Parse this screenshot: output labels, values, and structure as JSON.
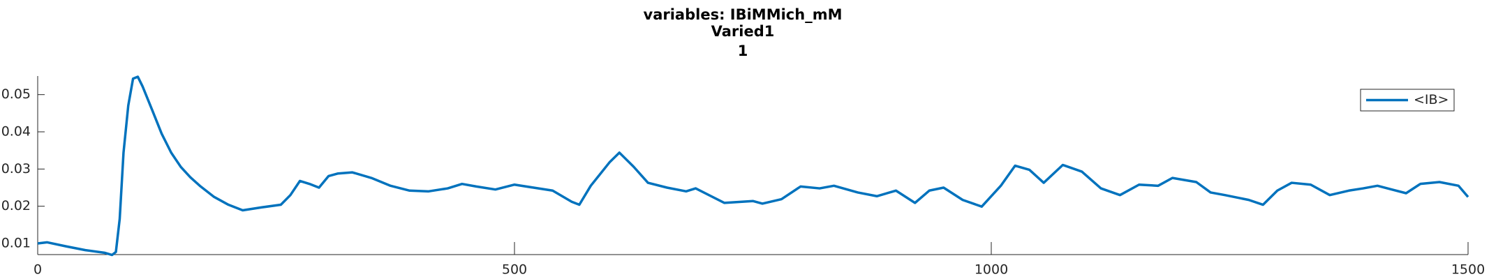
{
  "chart_data": {
    "type": "line",
    "title": "variables: IBiMMich_mM",
    "subtitle": [
      "Varied1",
      "1"
    ],
    "x": [
      0,
      10,
      30,
      50,
      70,
      78,
      82,
      86,
      90,
      95,
      100,
      105,
      110,
      120,
      130,
      140,
      150,
      160,
      170,
      185,
      200,
      215,
      235,
      255,
      265,
      275,
      285,
      295,
      305,
      315,
      330,
      350,
      370,
      390,
      410,
      430,
      445,
      460,
      480,
      500,
      520,
      540,
      560,
      568,
      580,
      600,
      610,
      625,
      640,
      660,
      680,
      690,
      720,
      750,
      760,
      780,
      800,
      820,
      835,
      860,
      880,
      900,
      920,
      935,
      950,
      970,
      990,
      1010,
      1025,
      1040,
      1055,
      1075,
      1095,
      1115,
      1135,
      1155,
      1175,
      1190,
      1215,
      1230,
      1245,
      1270,
      1285,
      1300,
      1315,
      1335,
      1355,
      1375,
      1390,
      1405,
      1420,
      1435,
      1450,
      1470,
      1490,
      1500
    ],
    "series": [
      {
        "name": "<IB>",
        "color": "#0072bd",
        "values": [
          0.01,
          0.0103,
          0.0092,
          0.0082,
          0.0075,
          0.0069,
          0.0077,
          0.0166,
          0.0344,
          0.0471,
          0.0543,
          0.0548,
          0.0522,
          0.0459,
          0.0395,
          0.0344,
          0.0306,
          0.0278,
          0.0255,
          0.0225,
          0.0204,
          0.0189,
          0.0197,
          0.0204,
          0.023,
          0.0268,
          0.026,
          0.025,
          0.0281,
          0.0288,
          0.0291,
          0.0276,
          0.0255,
          0.0242,
          0.024,
          0.0248,
          0.026,
          0.0253,
          0.0245,
          0.0258,
          0.025,
          0.0242,
          0.0212,
          0.0204,
          0.0255,
          0.0319,
          0.0344,
          0.0306,
          0.0263,
          0.025,
          0.024,
          0.0248,
          0.0209,
          0.0214,
          0.0207,
          0.0219,
          0.0253,
          0.0248,
          0.0255,
          0.0237,
          0.0227,
          0.0242,
          0.0209,
          0.0242,
          0.025,
          0.0217,
          0.0199,
          0.0255,
          0.0309,
          0.0298,
          0.0263,
          0.0311,
          0.0293,
          0.0248,
          0.023,
          0.0258,
          0.0255,
          0.0276,
          0.0265,
          0.0237,
          0.023,
          0.0217,
          0.0204,
          0.0242,
          0.0263,
          0.0258,
          0.023,
          0.0242,
          0.0248,
          0.0255,
          0.0245,
          0.0235,
          0.026,
          0.0265,
          0.0255,
          0.0225
        ]
      }
    ],
    "xlim": [
      0,
      1500
    ],
    "xticks": [
      0,
      500,
      1000,
      1500
    ],
    "ylim": [
      0.007,
      0.055
    ],
    "yticks": [
      0.01,
      0.02,
      0.03,
      0.04,
      0.05
    ],
    "legend": "northeast"
  }
}
